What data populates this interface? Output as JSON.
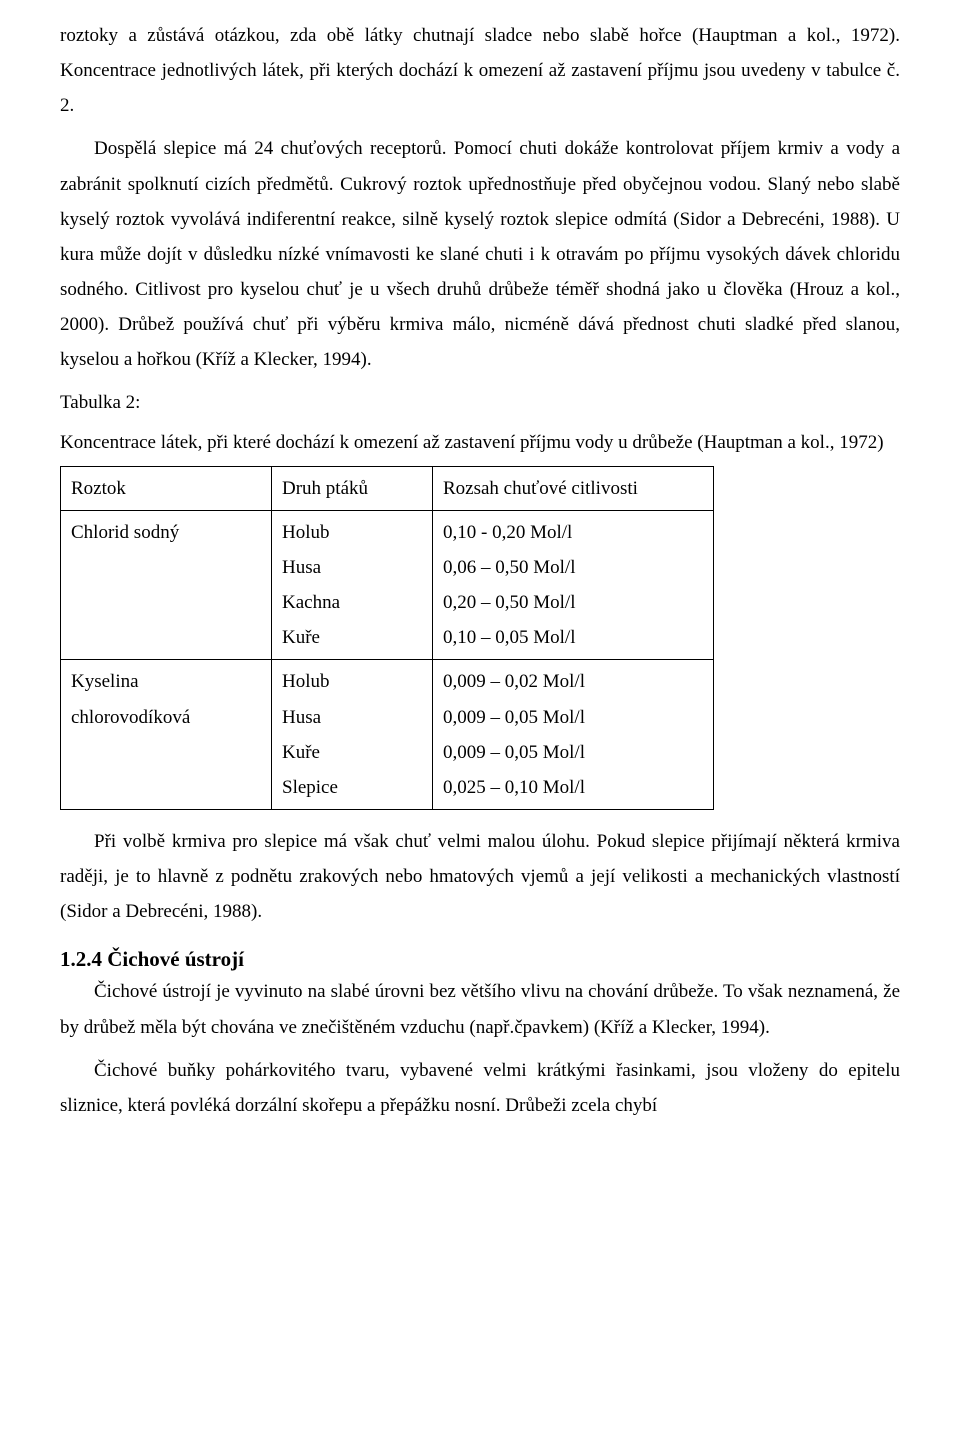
{
  "paragraphs": {
    "p1": "roztoky a zůstává otázkou, zda obě látky chutnají sladce nebo slabě hořce (Hauptman a kol., 1972). Koncentrace jednotlivých látek, při kterých dochází k omezení až zastavení příjmu jsou uvedeny v tabulce č. 2.",
    "p2": "Dospělá slepice má 24 chuťových receptorů. Pomocí chuti dokáže kontrolovat příjem krmiv a vody a zabránit spolknutí cizích předmětů. Cukrový roztok upřednostňuje před obyčejnou vodou. Slaný nebo slabě kyselý roztok vyvolává indiferentní reakce, silně kyselý roztok slepice odmítá (Sidor a Debrecéni, 1988). U kura může dojít v důsledku nízké vnímavosti ke slané chuti i k otravám po příjmu vysokých dávek chloridu sodného. Citlivost pro kyselou chuť je u všech druhů drůbeže téměř shodná jako u člověka (Hrouz a kol., 2000). Drůbež používá chuť při výběru krmiva málo, nicméně dává přednost chuti sladké před slanou, kyselou a hořkou (Kříž a Klecker, 1994).",
    "p3": "Při volbě krmiva pro slepice má však chuť velmi malou úlohu. Pokud slepice přijímají některá krmiva raději, je to hlavně z podnětu zrakových nebo hmatových vjemů a její velikosti a mechanických vlastností (Sidor a Debrecéni, 1988).",
    "p4": "Čichové ústrojí je vyvinuto na slabé úrovni bez většího vlivu na chování drůbeže. To však neznamená, že by drůbež měla být chována ve znečištěném vzduchu (např.čpavkem) (Kříž a Klecker, 1994).",
    "p5": "Čichové buňky pohárkovitého tvaru, vybavené velmi krátkými řasinkami, jsou vloženy do epitelu sliznice, která povléká dorzální skořepu a přepážku nosní. Drůbeži zcela chybí"
  },
  "table": {
    "label": "Tabulka 2:",
    "caption": "Koncentrace látek, při které dochází k omezení až zastavení příjmu vody u drůbeže (Hauptman a kol., 1972)",
    "headers": {
      "c1": "Roztok",
      "c2": "Druh ptáků",
      "c3": "Rozsah chuťové citlivosti"
    },
    "rows": [
      {
        "solution": "Chlorid sodný",
        "birds": [
          "Holub",
          "Husa",
          "Kachna",
          "Kuře"
        ],
        "ranges": [
          "0,10 - 0,20 Mol/l",
          "0,06 – 0,50 Mol/l",
          "0,20 – 0,50 Mol/l",
          "0,10 – 0,05 Mol/l"
        ]
      },
      {
        "solution": "Kyselina chlorovodíková",
        "birds": [
          "Holub",
          "Husa",
          "Kuře",
          "Slepice"
        ],
        "ranges": [
          "0,009 – 0,02 Mol/l",
          "0,009 – 0,05 Mol/l",
          "0,009 – 0,05 Mol/l",
          "0,025 – 0,10 Mol/l"
        ]
      }
    ]
  },
  "section_heading": "1.2.4 Čichové ústrojí"
}
